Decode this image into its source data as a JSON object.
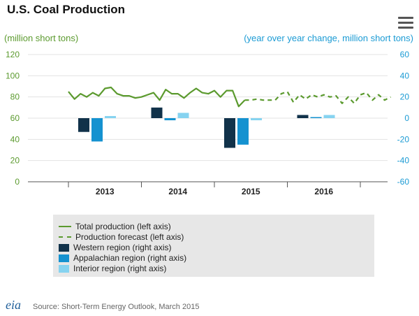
{
  "title": "U.S. Coal Production",
  "left_axis_label": "(million short tons)",
  "right_axis_label": "(year over year change, million short tons)",
  "source": "Source: Short-Term Energy Outlook, March 2015",
  "logo_text": "eia",
  "colors": {
    "total": "#5b9a2e",
    "western": "#11324a",
    "appalachian": "#1592d0",
    "interior": "#86d3f0",
    "left_axis": "#5b9a2e",
    "right_axis": "#1b9bd4"
  },
  "icons": {
    "menu": "hamburger-menu-icon"
  },
  "chart_data": {
    "type": "bar",
    "x_categories": [
      "2013",
      "2014",
      "2015",
      "2016"
    ],
    "left_ylim": [
      0,
      120
    ],
    "left_yticks": [
      "0",
      "20",
      "40",
      "60",
      "80",
      "100",
      "120"
    ],
    "right_ylim": [
      -60,
      60
    ],
    "right_yticks": [
      "-60",
      "-40",
      "-20",
      "0",
      "20",
      "40",
      "60"
    ],
    "grid": "horizontal",
    "legend_position": "bottom",
    "legend": [
      "Total production (left axis)",
      "Production forecast (left axis)",
      "Western region (right axis)",
      "Appalachian region (right axis)",
      "Interior region (right axis)"
    ],
    "total_production": {
      "name": "Total production (left axis)",
      "axis": "left",
      "year_start": 2013,
      "values": [
        85,
        78,
        83,
        80,
        84,
        81,
        88,
        89,
        83,
        81,
        81,
        79,
        80,
        82,
        84,
        77,
        87,
        83,
        83,
        79,
        84,
        88,
        84,
        83,
        86,
        80,
        86,
        86,
        71,
        77
      ]
    },
    "production_forecast": {
      "name": "Production forecast (left axis)",
      "axis": "left",
      "values": [
        77,
        78,
        77,
        77,
        77,
        83,
        85,
        75,
        82,
        78,
        82,
        80,
        82,
        80,
        81,
        74,
        80,
        74,
        82,
        84,
        77,
        82,
        77,
        80
      ]
    },
    "regional_changes": {
      "axis": "right",
      "series": [
        {
          "name": "Western region (right axis)",
          "values": [
            -13,
            10,
            -28,
            3
          ]
        },
        {
          "name": "Appalachian region (right axis)",
          "values": [
            -22,
            -2,
            -25,
            1
          ]
        },
        {
          "name": "Interior region (right axis)",
          "values": [
            2,
            5,
            -2,
            3
          ]
        }
      ]
    }
  }
}
